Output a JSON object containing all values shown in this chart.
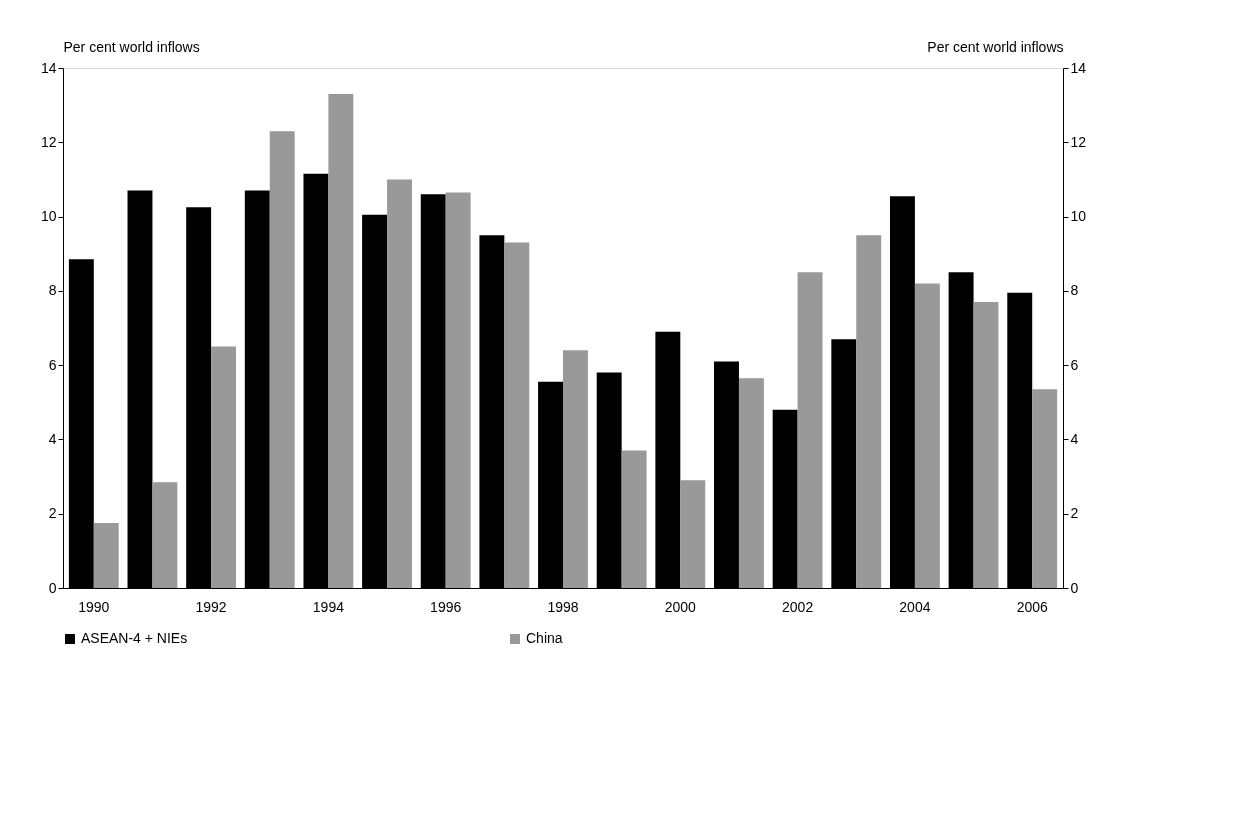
{
  "chart_data": {
    "type": "bar",
    "categories": [
      "1990",
      null,
      "1992",
      null,
      "1994",
      null,
      "1996",
      null,
      "1998",
      null,
      "2000",
      null,
      "2002",
      null,
      "2004",
      null,
      "2006"
    ],
    "series": [
      {
        "name": "ASEAN-4 + NIEs",
        "color": "#000000",
        "values": [
          8.85,
          10.7,
          10.25,
          10.7,
          11.15,
          10.05,
          10.6,
          9.5,
          5.55,
          5.8,
          6.9,
          6.1,
          4.8,
          6.7,
          10.55,
          8.5,
          7.95
        ]
      },
      {
        "name": "China",
        "color": "#999999",
        "values": [
          1.75,
          2.85,
          6.5,
          12.3,
          13.3,
          11.0,
          10.65,
          9.3,
          6.4,
          3.7,
          2.9,
          5.65,
          8.5,
          9.5,
          8.2,
          7.7,
          5.35
        ]
      }
    ],
    "ylabel": "Per cent world inflows",
    "y2label": "Per cent world inflows",
    "ylim": [
      0,
      14
    ],
    "yticks": [
      0,
      2,
      4,
      6,
      8,
      10,
      12,
      14
    ],
    "y2lim": [
      0,
      14
    ],
    "y2ticks": [
      0,
      2,
      4,
      6,
      8,
      10,
      12,
      14
    ],
    "grid": false,
    "legend": "bottom"
  }
}
